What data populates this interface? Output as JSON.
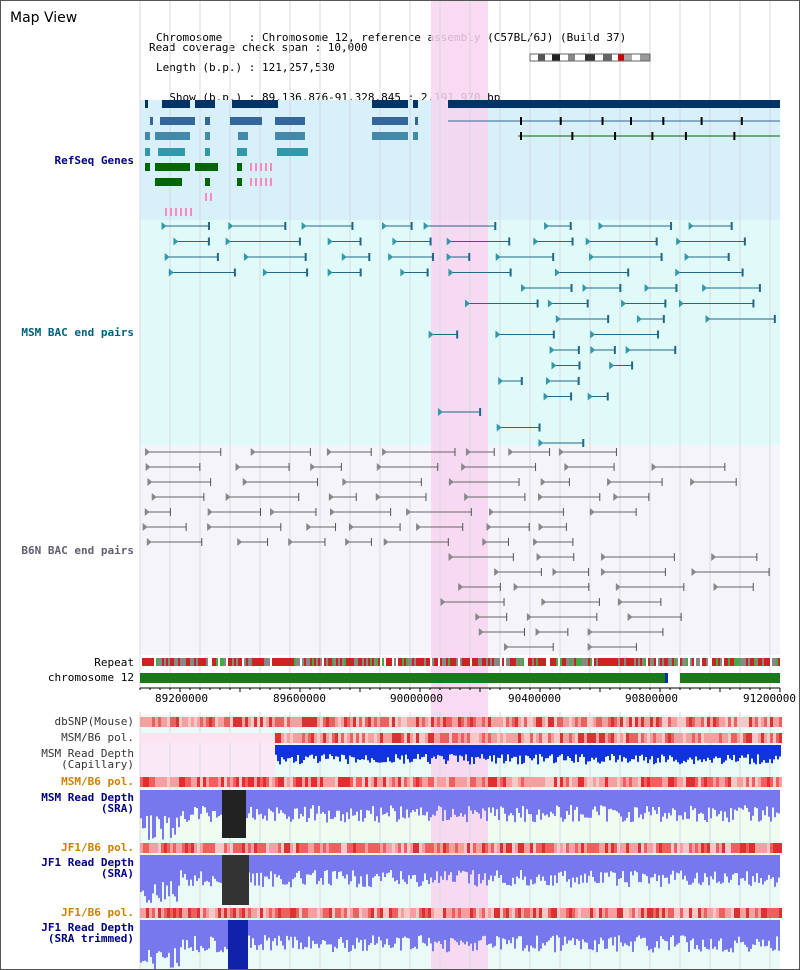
{
  "header": {
    "title": "Map View",
    "info_lines": [
      "Chromosome    : Chromosome 12, reference assembly (C57BL/6J) (Build 37)",
      "Length (b.p.) : 121,257,530",
      "  Show (b.p.) : 89,136,876-91,328,845 : 2,191,970 bp",
      "Read coverage check span : 10,000"
    ]
  },
  "tracks": {
    "refseq": "RefSeq Genes",
    "msm_bac": "MSM BAC end pairs",
    "b6n_bac": "B6N BAC end pairs",
    "repeat": "Repeat",
    "chromosome": "chromosome 12",
    "dbsnp": "dbSNP(Mouse)",
    "msm_b6_pol_1": "MSM/B6 pol.",
    "msm_depth_cap": "MSM Read Depth\n(Capillary)",
    "msm_b6_pol_2": "MSM/B6 pol.",
    "msm_depth_sra": "MSM Read Depth\n(SRA)",
    "jf1_b6_pol_1": "JF1/B6 pol.",
    "jf1_depth_sra": "JF1 Read Depth\n(SRA)",
    "jf1_b6_pol_2": "JF1/B6 pol.",
    "jf1_depth_trim": "JF1 Read Depth\n(SRA trimmed)"
  },
  "axis": {
    "ticks": [
      "89200000",
      "89600000",
      "90000000",
      "90400000",
      "90800000",
      "91200000"
    ]
  },
  "colors": {
    "refseq_bg": "#d8f0fa",
    "msm_bac_bg": "#e0fafa",
    "b6n_bac_bg": "#f4f4fa",
    "highlight": "#f8d4f0",
    "label_blue": "#00008b",
    "label_teal": "#006080",
    "label_orange": "#d08000",
    "label_navy": "#000080"
  }
}
